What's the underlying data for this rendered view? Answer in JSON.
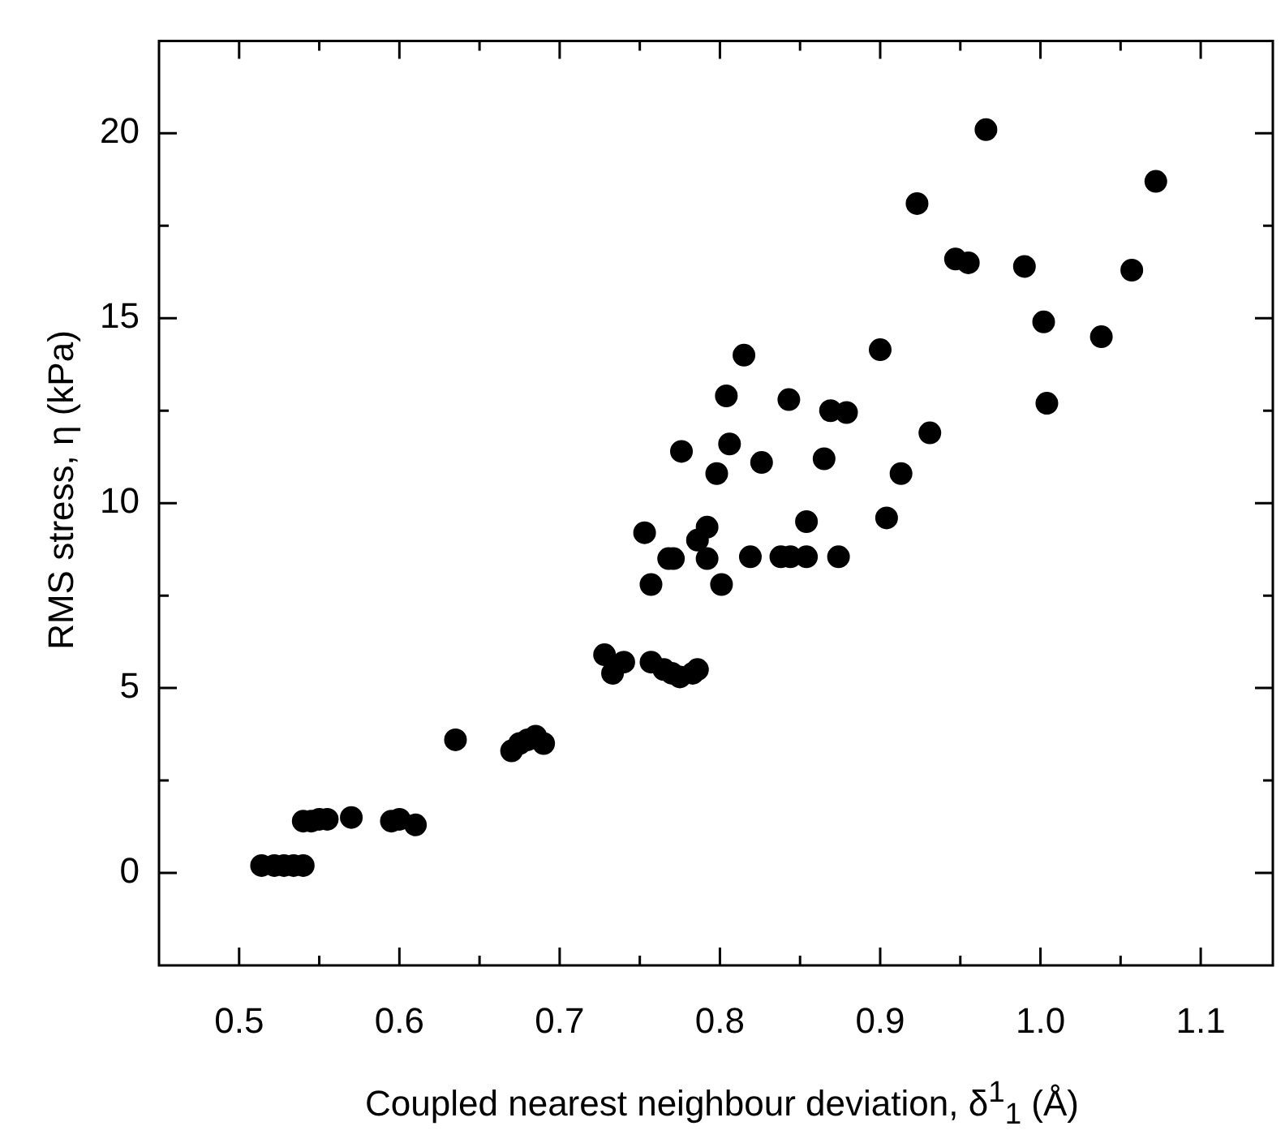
{
  "chart_data": {
    "type": "scatter",
    "xlabel": "Coupled nearest neighbour deviation, δ$^{1}$$_{1}$ (Å)",
    "ylabel": "RMS stress, η (kPa)",
    "x": [
      0.514,
      0.522,
      0.528,
      0.534,
      0.54,
      0.54,
      0.545,
      0.55,
      0.555,
      0.57,
      0.595,
      0.6,
      0.61,
      0.635,
      0.67,
      0.675,
      0.68,
      0.685,
      0.69,
      0.728,
      0.733,
      0.74,
      0.757,
      0.765,
      0.77,
      0.775,
      0.783,
      0.786,
      0.753,
      0.757,
      0.768,
      0.771,
      0.776,
      0.786,
      0.792,
      0.792,
      0.798,
      0.801,
      0.804,
      0.806,
      0.815,
      0.819,
      0.826,
      0.838,
      0.844,
      0.854,
      0.843,
      0.854,
      0.865,
      0.869,
      0.879,
      0.874,
      0.9,
      0.904,
      0.913,
      0.931,
      1.002,
      1.038,
      1.004,
      1.072,
      1.057,
      0.923,
      0.947,
      0.955,
      0.966,
      0.99
    ],
    "values": [
      0.2,
      0.2,
      0.2,
      0.2,
      0.2,
      1.4,
      1.4,
      1.45,
      1.45,
      1.5,
      1.4,
      1.45,
      1.3,
      3.6,
      3.3,
      3.5,
      3.6,
      3.7,
      3.5,
      5.9,
      5.4,
      5.7,
      5.7,
      5.5,
      5.4,
      5.3,
      5.4,
      5.5,
      9.2,
      7.8,
      8.5,
      8.5,
      11.4,
      9.0,
      9.35,
      8.5,
      10.8,
      7.8,
      12.9,
      11.6,
      14.0,
      8.55,
      11.1,
      8.55,
      8.55,
      8.55,
      12.8,
      9.5,
      11.2,
      12.5,
      12.45,
      8.55,
      14.15,
      9.6,
      10.8,
      11.9,
      14.9,
      14.5,
      12.7,
      18.7,
      16.3,
      18.1,
      16.6,
      16.5,
      20.1,
      16.4
    ],
    "color": "#000000",
    "marker": "circle",
    "xlim": [
      0.45,
      1.145
    ],
    "xticks": [
      0.5,
      {
        "value": 0.55,
        "label": null
      },
      0.6,
      {
        "value": 0.65,
        "label": null
      },
      0.7,
      {
        "value": 0.75,
        "label": null
      },
      0.8,
      {
        "value": 0.85,
        "label": null
      },
      0.9,
      {
        "value": 0.95,
        "label": null
      },
      {
        "value": 1.0,
        "label": "1.0"
      },
      {
        "value": 1.05,
        "label": null
      },
      1.1
    ],
    "ylim": [
      -2.5,
      22.5
    ],
    "yticks": [
      0,
      {
        "value": 2.5,
        "label": null
      },
      5,
      {
        "value": 7.5,
        "label": null
      },
      10,
      {
        "value": 12.5,
        "label": null
      },
      15,
      {
        "value": 17.5,
        "label": null
      },
      20
    ],
    "grid": false,
    "legend": false
  }
}
